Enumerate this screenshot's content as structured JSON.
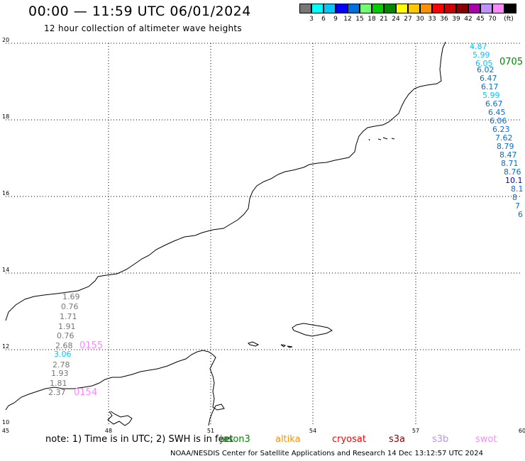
{
  "header": {
    "title": "00:00 — 11:59 UTC 06/01/2024",
    "subtitle": "12 hour collection of altimeter wave heights"
  },
  "scale": {
    "colors": [
      "#777777",
      "#00ffff",
      "#00c8ff",
      "#0000ff",
      "#0070e0",
      "#70ff70",
      "#00cc00",
      "#008800",
      "#ffff00",
      "#ffc800",
      "#ff9000",
      "#ff0000",
      "#cc0000",
      "#880000",
      "#aa00aa",
      "#c090ff",
      "#ff88ff",
      "#000000"
    ],
    "labels": [
      "3",
      "6",
      "9",
      "12",
      "15",
      "18",
      "21",
      "24",
      "27",
      "30",
      "33",
      "36",
      "39",
      "42",
      "45",
      "70",
      "(ft)"
    ]
  },
  "axes": {
    "lat_labels": [
      "20",
      "18",
      "16",
      "14",
      "12",
      "10"
    ],
    "lon_labels": [
      "45",
      "48",
      "51",
      "54",
      "57",
      "60"
    ]
  },
  "tracks": {
    "east": {
      "label": "0705",
      "label_color": "#008800",
      "values": [
        {
          "v": "4.87",
          "c": "#00c8ff"
        },
        {
          "v": "5.99",
          "c": "#00c8ff"
        },
        {
          "v": "6.05",
          "c": "#00c8ff"
        },
        {
          "v": "6.02",
          "c": "#0070e0"
        },
        {
          "v": "6.47",
          "c": "#0070e0"
        },
        {
          "v": "6.17",
          "c": "#0070e0"
        },
        {
          "v": "5.99",
          "c": "#00c8ff"
        },
        {
          "v": "6.67",
          "c": "#0070e0"
        },
        {
          "v": "6.45",
          "c": "#0070e0"
        },
        {
          "v": "6.06",
          "c": "#0070e0"
        },
        {
          "v": "6.23",
          "c": "#0070e0"
        },
        {
          "v": "7.62",
          "c": "#0070e0"
        },
        {
          "v": "8.79",
          "c": "#0070e0"
        },
        {
          "v": "8.47",
          "c": "#0070e0"
        },
        {
          "v": "8.71",
          "c": "#0070e0"
        },
        {
          "v": "8.76",
          "c": "#0070e0"
        },
        {
          "v": "10.1",
          "c": "#0000cc"
        },
        {
          "v": "8.1",
          "c": "#0070e0"
        },
        {
          "v": "8",
          "c": "#0070e0"
        },
        {
          "v": "7",
          "c": "#0070e0"
        },
        {
          "v": "6",
          "c": "#0070e0"
        }
      ]
    },
    "west_upper": {
      "label": "0155",
      "label_color": "#ff88ff",
      "values": [
        {
          "v": "1.69",
          "c": "#777777"
        },
        {
          "v": "0.76",
          "c": "#777777"
        },
        {
          "v": "1.71",
          "c": "#777777"
        },
        {
          "v": "1.91",
          "c": "#777777"
        },
        {
          "v": "0.76",
          "c": "#777777"
        },
        {
          "v": "2.68",
          "c": "#777777"
        },
        {
          "v": "3.06",
          "c": "#00c8ff"
        }
      ]
    },
    "west_lower": {
      "label": "0154",
      "label_color": "#ff88ff",
      "values": [
        {
          "v": "2.78",
          "c": "#777777"
        },
        {
          "v": "1.93",
          "c": "#777777"
        },
        {
          "v": "1.81",
          "c": "#777777"
        },
        {
          "v": "2.37",
          "c": "#777777"
        }
      ]
    }
  },
  "footer": {
    "note": "note: 1) Time is in UTC; 2) SWH is in feet",
    "satellites": [
      {
        "name": "jason3",
        "color": "#008800"
      },
      {
        "name": "altika",
        "color": "#ff9000"
      },
      {
        "name": "cryosat",
        "color": "#ff0000"
      },
      {
        "name": "s3a",
        "color": "#880000"
      },
      {
        "name": "s3b",
        "color": "#c090ff"
      },
      {
        "name": "swot",
        "color": "#ff88ff"
      }
    ],
    "credit": "NOAA/NESDIS Center for Satellite Applications and Research    14 Dec 13:12:57 UTC 2024"
  }
}
